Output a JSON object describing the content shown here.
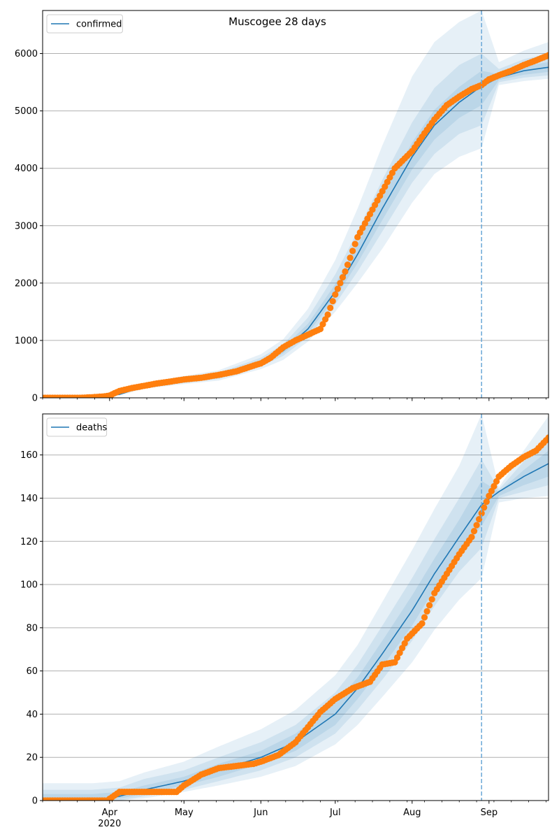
{
  "figure_title": "Muscogee 28 days",
  "x_axis": {
    "month_ticks": [
      "Apr",
      "May",
      "Jun",
      "Jul",
      "Aug",
      "Sep"
    ],
    "month_tick_dates": [
      "2020-04-01",
      "2020-05-01",
      "2020-06-01",
      "2020-07-01",
      "2020-08-01",
      "2020-09-01"
    ],
    "year_label": "2020",
    "start": "2020-03-05",
    "end": "2020-09-25",
    "forecast_start": "2020-08-29"
  },
  "colors": {
    "model": "#1f77b4",
    "observed": "#ff7f0e",
    "band": "#1f77b4",
    "grid": "#b0b0b0",
    "forecast_line": "#6aa8d8"
  },
  "chart_data": [
    {
      "type": "line",
      "title": "Muscogee 28 days",
      "legend": {
        "label": "confirmed",
        "position": "top-left"
      },
      "ylim": [
        0,
        6750
      ],
      "yticks": [
        0,
        1000,
        2000,
        3000,
        4000,
        5000,
        6000
      ],
      "grid": "horizontal",
      "model_median": {
        "x": [
          "2020-03-05",
          "2020-03-20",
          "2020-03-28",
          "2020-04-05",
          "2020-04-15",
          "2020-05-01",
          "2020-05-15",
          "2020-06-01",
          "2020-06-10",
          "2020-06-20",
          "2020-07-01",
          "2020-07-10",
          "2020-07-20",
          "2020-08-01",
          "2020-08-10",
          "2020-08-20",
          "2020-08-29",
          "2020-09-05",
          "2020-09-15",
          "2020-09-25"
        ],
        "y": [
          0,
          5,
          20,
          60,
          200,
          300,
          380,
          620,
          820,
          1200,
          1850,
          2500,
          3300,
          4200,
          4750,
          5150,
          5430,
          5580,
          5700,
          5760
        ]
      },
      "uncertainty_bands": [
        {
          "level": "outer",
          "lower": [
            0,
            0,
            10,
            40,
            160,
            240,
            300,
            500,
            660,
            980,
            1500,
            2000,
            2600,
            3400,
            3900,
            4200,
            4350,
            5450,
            5520,
            5560
          ],
          "upper": [
            0,
            10,
            40,
            100,
            260,
            380,
            480,
            760,
            1020,
            1550,
            2400,
            3300,
            4400,
            5600,
            6200,
            6550,
            6750,
            5850,
            6050,
            6200
          ]
        },
        {
          "level": "middle",
          "lower": [
            0,
            0,
            14,
            48,
            175,
            260,
            330,
            550,
            730,
            1060,
            1630,
            2200,
            2900,
            3750,
            4250,
            4600,
            4750,
            5500,
            5580,
            5620
          ],
          "upper": [
            0,
            8,
            30,
            82,
            235,
            345,
            440,
            700,
            930,
            1400,
            2150,
            2900,
            3800,
            4800,
            5400,
            5800,
            6000,
            5730,
            5900,
            6000
          ]
        },
        {
          "level": "inner",
          "lower": [
            0,
            2,
            17,
            54,
            188,
            280,
            355,
            585,
            775,
            1130,
            1740,
            2350,
            3100,
            3980,
            4500,
            4880,
            5100,
            5540,
            5630,
            5680
          ],
          "upper": [
            0,
            6,
            24,
            68,
            215,
            320,
            410,
            660,
            875,
            1290,
            1980,
            2680,
            3520,
            4450,
            5020,
            5420,
            5700,
            5640,
            5780,
            5850
          ]
        }
      ],
      "observed": {
        "x": [
          "2020-03-05",
          "2020-03-20",
          "2020-03-25",
          "2020-03-30",
          "2020-04-01",
          "2020-04-05",
          "2020-04-10",
          "2020-04-15",
          "2020-04-20",
          "2020-04-25",
          "2020-05-01",
          "2020-05-08",
          "2020-05-15",
          "2020-05-22",
          "2020-05-29",
          "2020-06-01",
          "2020-06-05",
          "2020-06-10",
          "2020-06-15",
          "2020-06-20",
          "2020-06-25",
          "2020-06-28",
          "2020-07-01",
          "2020-07-05",
          "2020-07-10",
          "2020-07-15",
          "2020-07-20",
          "2020-07-25",
          "2020-08-01",
          "2020-08-05",
          "2020-08-10",
          "2020-08-15",
          "2020-08-20",
          "2020-08-25",
          "2020-08-29",
          "2020-09-01",
          "2020-09-05",
          "2020-09-10",
          "2020-09-15",
          "2020-09-20",
          "2020-09-25"
        ],
        "y": [
          0,
          0,
          10,
          25,
          40,
          120,
          170,
          210,
          250,
          280,
          320,
          350,
          400,
          460,
          560,
          600,
          700,
          880,
          1000,
          1100,
          1200,
          1450,
          1800,
          2200,
          2800,
          3200,
          3600,
          4000,
          4300,
          4550,
          4850,
          5100,
          5250,
          5380,
          5450,
          5550,
          5620,
          5700,
          5800,
          5880,
          5970
        ]
      }
    },
    {
      "type": "line",
      "legend": {
        "label": "deaths",
        "position": "top-left"
      },
      "ylim": [
        0,
        179
      ],
      "yticks": [
        0,
        20,
        40,
        60,
        80,
        100,
        120,
        140,
        160
      ],
      "grid": "horizontal",
      "model_median": {
        "x": [
          "2020-03-05",
          "2020-03-25",
          "2020-04-05",
          "2020-04-15",
          "2020-05-01",
          "2020-05-15",
          "2020-06-01",
          "2020-06-15",
          "2020-07-01",
          "2020-07-10",
          "2020-07-20",
          "2020-08-01",
          "2020-08-10",
          "2020-08-20",
          "2020-08-29",
          "2020-09-05",
          "2020-09-15",
          "2020-09-25"
        ],
        "y": [
          0,
          0,
          2,
          5,
          9,
          14,
          20,
          27,
          40,
          52,
          68,
          88,
          105,
          122,
          137,
          143,
          150,
          156
        ]
      },
      "uncertainty_bands": [
        {
          "level": "outer",
          "lower": [
            0,
            0,
            0,
            1,
            4,
            7,
            11,
            16,
            26,
            35,
            48,
            64,
            79,
            93,
            103,
            138,
            140,
            141
          ],
          "upper": [
            8,
            8,
            9,
            13,
            18,
            25,
            33,
            42,
            58,
            72,
            92,
            116,
            135,
            155,
            179,
            145,
            162,
            178
          ]
        },
        {
          "level": "middle",
          "lower": [
            0,
            0,
            0,
            2,
            5,
            9,
            14,
            20,
            31,
            42,
            56,
            74,
            90,
            106,
            117,
            140,
            143,
            146
          ],
          "upper": [
            5,
            5,
            6,
            10,
            14,
            20,
            27,
            35,
            50,
            63,
            81,
            103,
            121,
            140,
            158,
            144,
            157,
            170
          ]
        },
        {
          "level": "inner",
          "lower": [
            0,
            0,
            1,
            3,
            7,
            11,
            17,
            23,
            35,
            47,
            62,
            81,
            98,
            114,
            127,
            141,
            146,
            150
          ],
          "upper": [
            3,
            3,
            4,
            7,
            11,
            17,
            23,
            31,
            45,
            57,
            74,
            95,
            112,
            130,
            148,
            143,
            153,
            162
          ]
        }
      ],
      "observed": {
        "x": [
          "2020-03-05",
          "2020-03-25",
          "2020-03-31",
          "2020-04-05",
          "2020-04-10",
          "2020-04-20",
          "2020-04-28",
          "2020-05-01",
          "2020-05-08",
          "2020-05-15",
          "2020-05-22",
          "2020-05-29",
          "2020-06-01",
          "2020-06-08",
          "2020-06-15",
          "2020-06-20",
          "2020-06-25",
          "2020-07-01",
          "2020-07-08",
          "2020-07-15",
          "2020-07-20",
          "2020-07-25",
          "2020-07-30",
          "2020-08-05",
          "2020-08-10",
          "2020-08-15",
          "2020-08-20",
          "2020-08-25",
          "2020-08-29",
          "2020-09-01",
          "2020-09-05",
          "2020-09-10",
          "2020-09-15",
          "2020-09-20",
          "2020-09-25"
        ],
        "y": [
          0,
          0,
          0,
          4,
          4,
          4,
          4,
          7,
          12,
          15,
          16,
          17,
          18,
          21,
          27,
          34,
          41,
          47,
          52,
          55,
          63,
          64,
          75,
          82,
          96,
          105,
          114,
          122,
          133,
          141,
          150,
          155,
          159,
          162,
          168
        ]
      }
    }
  ]
}
